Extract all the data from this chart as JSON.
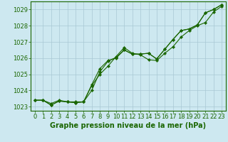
{
  "x": [
    0,
    1,
    2,
    3,
    4,
    5,
    6,
    7,
    8,
    9,
    10,
    11,
    12,
    13,
    14,
    15,
    16,
    17,
    18,
    19,
    20,
    21,
    22,
    23
  ],
  "line1": [
    1023.4,
    1023.4,
    1023.2,
    1023.4,
    1023.3,
    1023.3,
    1023.3,
    1024.3,
    1025.0,
    1025.5,
    1026.1,
    1026.65,
    1026.3,
    1026.2,
    1025.9,
    1025.85,
    1026.3,
    1026.7,
    1027.3,
    1027.7,
    1028.0,
    1028.2,
    1028.85,
    1029.2
  ],
  "line2": [
    1023.4,
    1023.4,
    1023.1,
    1023.35,
    1023.3,
    1023.25,
    1023.3,
    1024.35,
    1025.35,
    1025.85,
    1026.0,
    1026.5,
    1026.25,
    1026.25,
    1026.3,
    1025.95,
    1026.55,
    1027.15,
    1027.7,
    1027.8,
    1028.05,
    1028.8,
    1029.0,
    1029.3
  ],
  "line3": [
    1023.4,
    1023.4,
    1023.1,
    1023.35,
    1023.3,
    1023.25,
    1023.3,
    1024.0,
    1025.15,
    1025.8,
    1026.05,
    1026.5,
    1026.25,
    1026.25,
    1026.3,
    1025.95,
    1026.55,
    1027.15,
    1027.7,
    1027.8,
    1028.05,
    1028.8,
    1029.0,
    1029.3
  ],
  "line_color": "#1a6600",
  "marker": "D",
  "marker_size": 2.2,
  "bg_color": "#cde8f0",
  "grid_color": "#a8c8d4",
  "ylim": [
    1022.75,
    1029.5
  ],
  "yticks": [
    1023,
    1024,
    1025,
    1026,
    1027,
    1028,
    1029
  ],
  "xticks": [
    0,
    1,
    2,
    3,
    4,
    5,
    6,
    7,
    8,
    9,
    10,
    11,
    12,
    13,
    14,
    15,
    16,
    17,
    18,
    19,
    20,
    21,
    22,
    23
  ],
  "xlabel": "Graphe pression niveau de la mer (hPa)",
  "xlabel_color": "#1a6600",
  "xlabel_fontsize": 7.0,
  "axis_tick_fontsize": 6.0,
  "tick_color": "#1a6600",
  "border_color": "#1a6600",
  "linewidth": 0.8
}
